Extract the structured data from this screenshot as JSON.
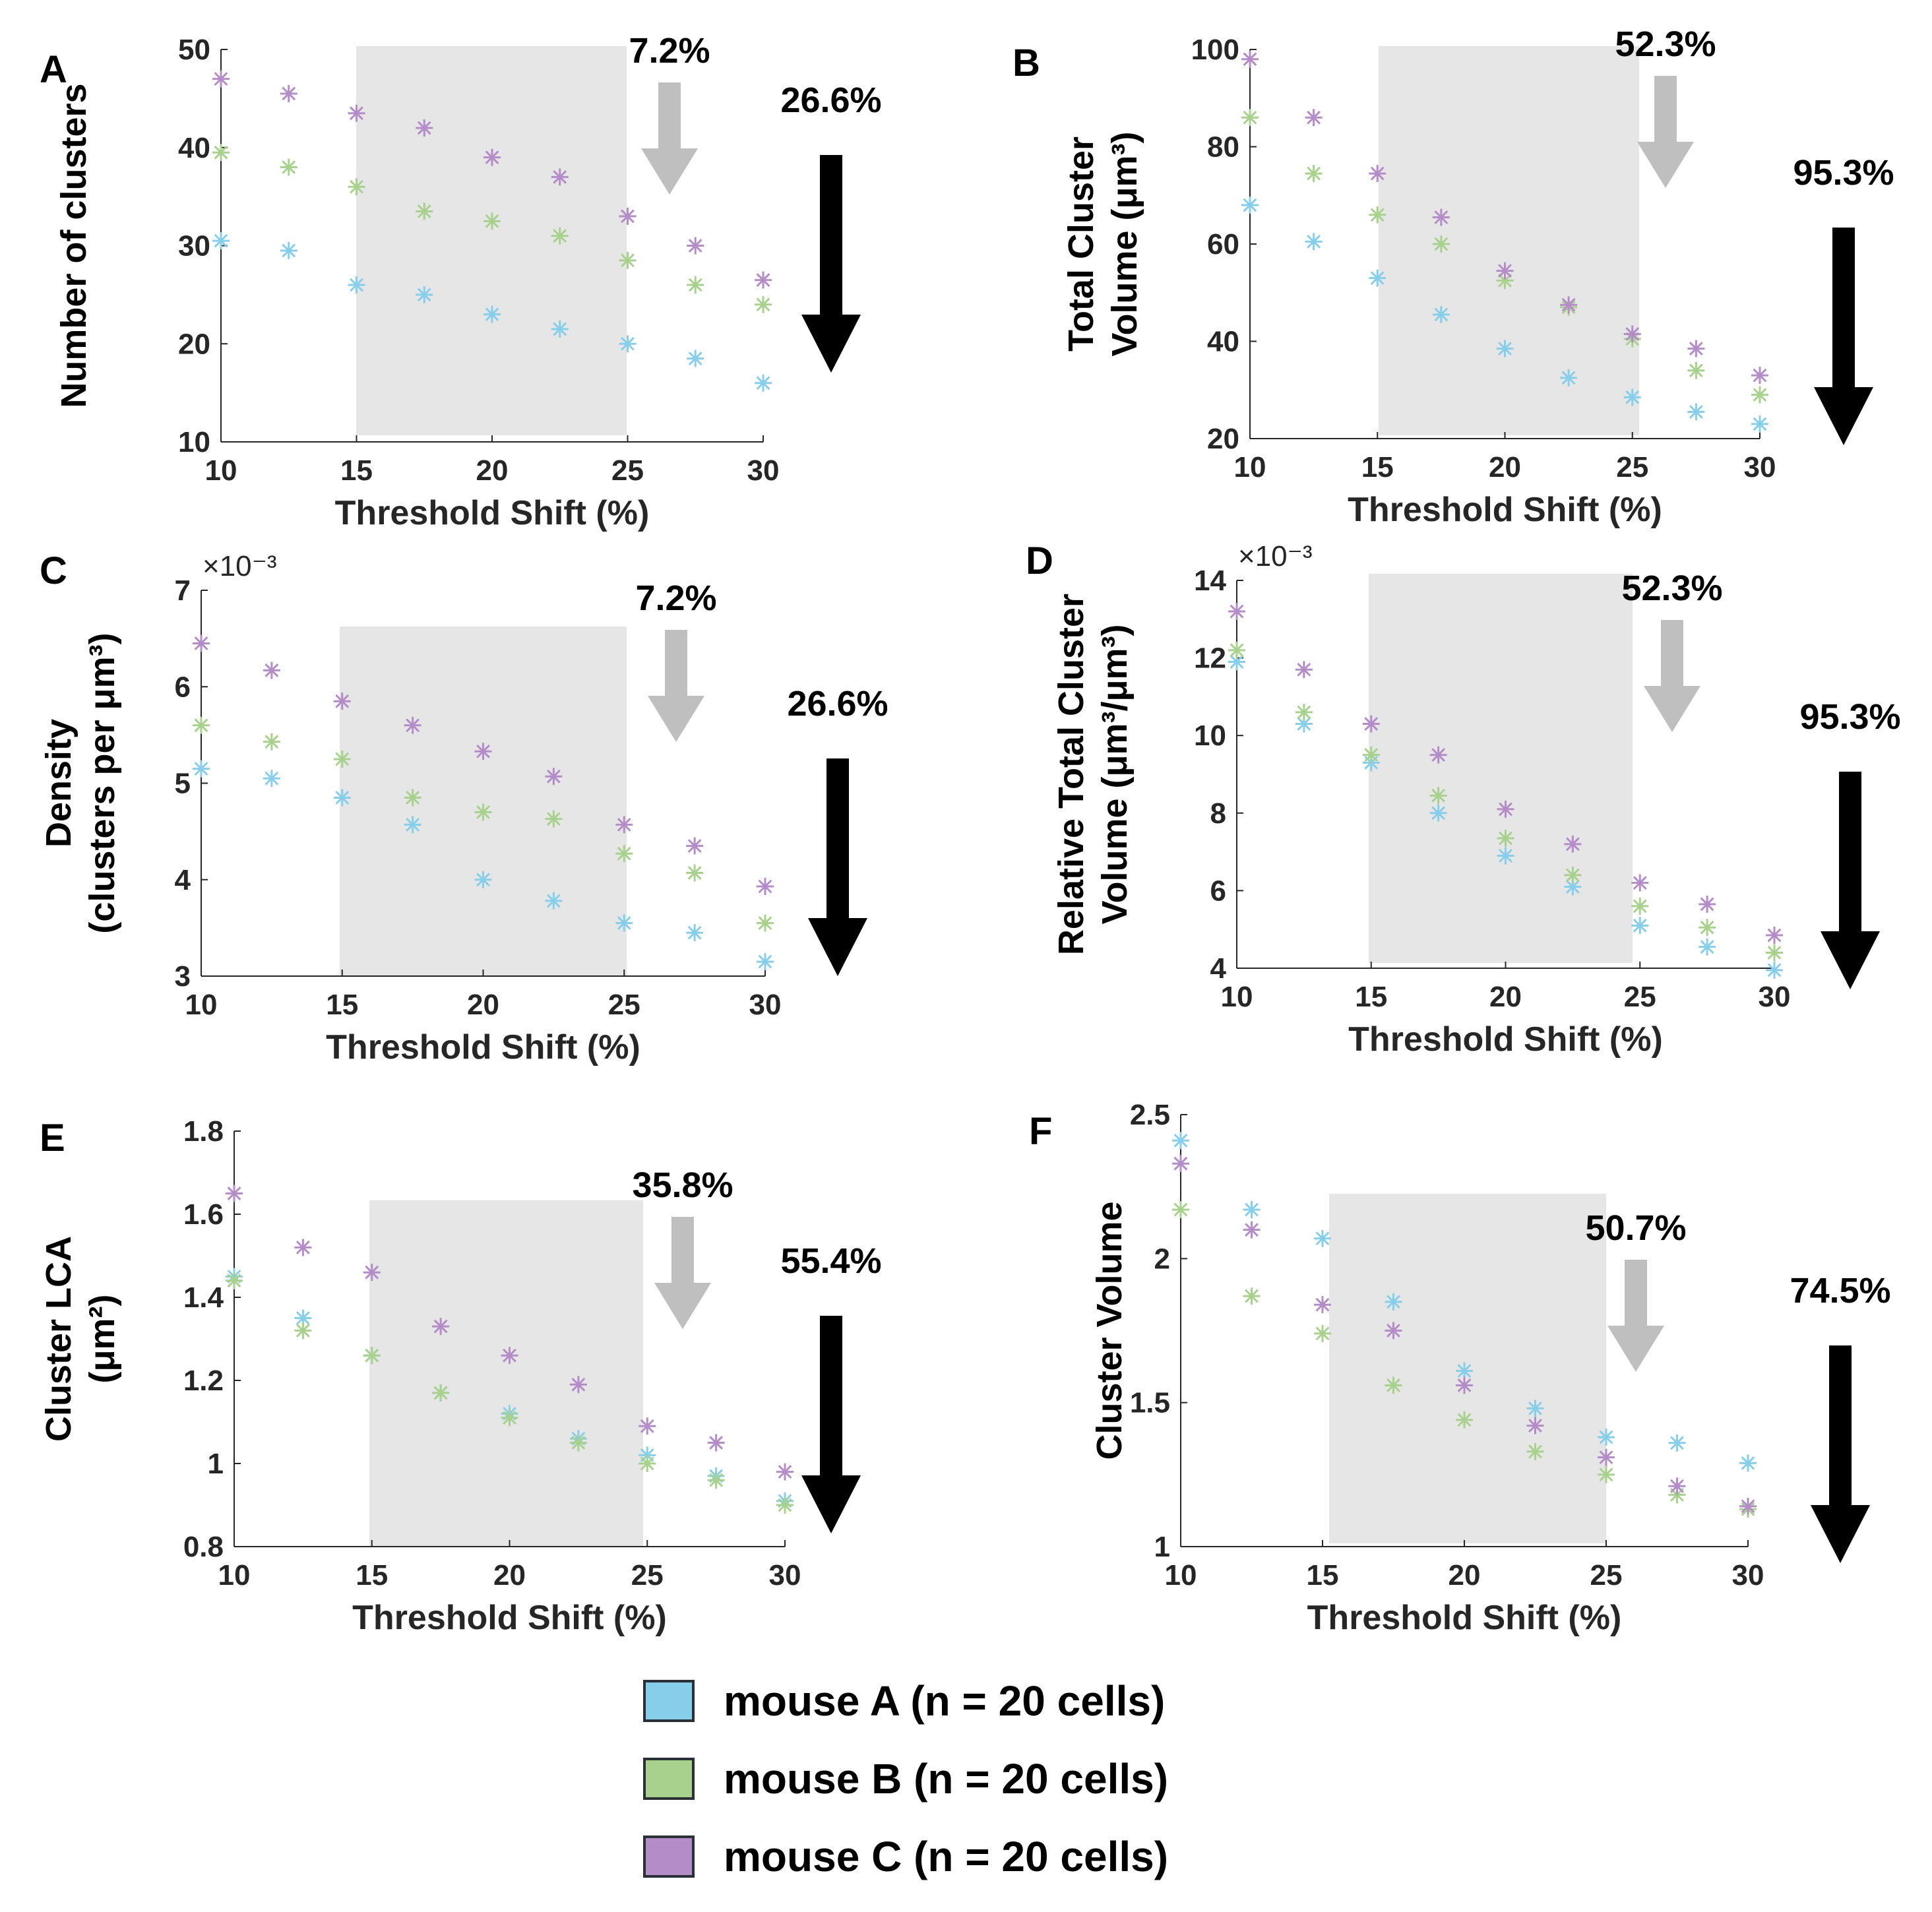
{
  "series": [
    {
      "name": "mouse A",
      "label": "mouse A (n = 20 cells)",
      "color": "#87ceeb"
    },
    {
      "name": "mouse B",
      "label": "mouse B (n = 20 cells)",
      "color": "#a9d18e"
    },
    {
      "name": "mouse C",
      "label": "mouse C (n = 20 cells)",
      "color": "#b48cc8"
    }
  ],
  "chart_data": [
    {
      "panel": "A",
      "type": "scatter",
      "xlabel": "Threshold Shift (%)",
      "ylabel": [
        "Number of clusters"
      ],
      "xlim": [
        10,
        30
      ],
      "ylim": [
        10,
        50
      ],
      "xticks": [
        "10",
        "15",
        "20",
        "25",
        "30"
      ],
      "yticks": [
        "10",
        "20",
        "30",
        "40",
        "50"
      ],
      "multiplier": "",
      "shaded_x": [
        15,
        25
      ],
      "annotations": {
        "gray": "7.2%",
        "black": "26.6%"
      },
      "x": [
        10,
        12.5,
        15,
        17.5,
        20,
        22.5,
        25,
        27.5,
        30
      ],
      "series": [
        {
          "name": "mouse A",
          "values": [
            30.5,
            29.5,
            26,
            25,
            23,
            21.5,
            20,
            18.5,
            16
          ]
        },
        {
          "name": "mouse B",
          "values": [
            39.5,
            38,
            36,
            33.5,
            32.5,
            31,
            28.5,
            26,
            24
          ]
        },
        {
          "name": "mouse C",
          "values": [
            47,
            45.5,
            43.5,
            42,
            39,
            37,
            33,
            30,
            26.5
          ]
        }
      ]
    },
    {
      "panel": "B",
      "type": "scatter",
      "xlabel": "Threshold Shift (%)",
      "ylabel": [
        "Total Cluster",
        "Volume (μm³)"
      ],
      "xlim": [
        10,
        30
      ],
      "ylim": [
        20,
        100
      ],
      "xticks": [
        "10",
        "15",
        "20",
        "25",
        "30"
      ],
      "yticks": [
        "20",
        "40",
        "60",
        "80",
        "100"
      ],
      "multiplier": "",
      "shaded_x": [
        15,
        25
      ],
      "annotations": {
        "gray": "52.3%",
        "black": "95.3%"
      },
      "x": [
        10,
        12.5,
        15,
        17.5,
        20,
        22.5,
        25,
        27.5,
        30
      ],
      "series": [
        {
          "name": "mouse A",
          "values": [
            68,
            60.5,
            53,
            45.5,
            38.5,
            32.5,
            28.5,
            25.5,
            23
          ]
        },
        {
          "name": "mouse B",
          "values": [
            86,
            74.5,
            66,
            60,
            52.5,
            47,
            40.5,
            34,
            29
          ]
        },
        {
          "name": "mouse C",
          "values": [
            98,
            86,
            74.5,
            65.5,
            54.5,
            47.5,
            41.5,
            38.5,
            33
          ]
        }
      ]
    },
    {
      "panel": "C",
      "type": "scatter",
      "xlabel": "Threshold Shift (%)",
      "ylabel": [
        "Density",
        "(clusters per μm³)"
      ],
      "xlim": [
        10,
        30
      ],
      "ylim": [
        3,
        7
      ],
      "xticks": [
        "10",
        "15",
        "20",
        "25",
        "30"
      ],
      "yticks": [
        "3",
        "4",
        "5",
        "6",
        "7"
      ],
      "multiplier": "×10⁻³",
      "shaded_x": [
        15,
        25
      ],
      "annotations": {
        "gray": "7.2%",
        "black": "26.6%"
      },
      "x": [
        10,
        12.5,
        15,
        17.5,
        20,
        22.5,
        25,
        27.5,
        30
      ],
      "series": [
        {
          "name": "mouse A",
          "values": [
            5.15,
            5.05,
            4.85,
            4.57,
            4.0,
            3.78,
            3.55,
            3.45,
            3.15
          ]
        },
        {
          "name": "mouse B",
          "values": [
            5.6,
            5.43,
            5.25,
            4.85,
            4.7,
            4.63,
            4.27,
            4.07,
            3.55
          ]
        },
        {
          "name": "mouse C",
          "values": [
            6.45,
            6.17,
            5.85,
            5.6,
            5.33,
            5.07,
            4.57,
            4.35,
            3.93
          ]
        }
      ]
    },
    {
      "panel": "D",
      "type": "scatter",
      "xlabel": "Threshold Shift (%)",
      "ylabel": [
        "Relative Total Cluster",
        "Volume (μm³/μm³)"
      ],
      "xlim": [
        10,
        30
      ],
      "ylim": [
        4,
        14
      ],
      "xticks": [
        "10",
        "15",
        "20",
        "25",
        "30"
      ],
      "yticks": [
        "4",
        "6",
        "8",
        "10",
        "12",
        "14"
      ],
      "multiplier": "×10⁻³",
      "shaded_x": [
        15,
        25
      ],
      "annotations": {
        "gray": "52.3%",
        "black": "95.3%"
      },
      "x": [
        10,
        12.5,
        15,
        17.5,
        20,
        22.5,
        25,
        27.5,
        30
      ],
      "series": [
        {
          "name": "mouse A",
          "values": [
            11.9,
            10.3,
            9.3,
            8.0,
            6.9,
            6.1,
            5.1,
            4.55,
            3.95
          ]
        },
        {
          "name": "mouse B",
          "values": [
            12.2,
            10.6,
            9.5,
            8.45,
            7.35,
            6.4,
            5.6,
            5.05,
            4.4
          ]
        },
        {
          "name": "mouse C",
          "values": [
            13.2,
            11.7,
            10.3,
            9.5,
            8.1,
            7.2,
            6.2,
            5.65,
            4.85
          ]
        }
      ]
    },
    {
      "panel": "E",
      "type": "scatter",
      "xlabel": "Threshold Shift (%)",
      "ylabel": [
        "Cluster LCA",
        "(μm²)"
      ],
      "xlim": [
        10,
        30
      ],
      "ylim": [
        0.8,
        1.8
      ],
      "xticks": [
        "10",
        "15",
        "20",
        "25",
        "30"
      ],
      "yticks": [
        "0.8",
        "1",
        "1.2",
        "1.4",
        "1.6",
        "1.8"
      ],
      "multiplier": "",
      "shaded_x": [
        15,
        25
      ],
      "annotations": {
        "gray": "35.8%",
        "black": "55.4%"
      },
      "x": [
        10,
        12.5,
        15,
        17.5,
        20,
        22.5,
        25,
        27.5,
        30
      ],
      "series": [
        {
          "name": "mouse A",
          "values": [
            1.45,
            1.35,
            1.26,
            1.17,
            1.12,
            1.06,
            1.02,
            0.97,
            0.91
          ]
        },
        {
          "name": "mouse B",
          "values": [
            1.44,
            1.32,
            1.26,
            1.17,
            1.11,
            1.05,
            1.0,
            0.96,
            0.9
          ]
        },
        {
          "name": "mouse C",
          "values": [
            1.65,
            1.52,
            1.46,
            1.33,
            1.26,
            1.19,
            1.09,
            1.05,
            0.98
          ]
        }
      ]
    },
    {
      "panel": "F",
      "type": "scatter",
      "xlabel": "Threshold Shift (%)",
      "ylabel": [
        "Cluster Volume"
      ],
      "xlim": [
        10,
        30
      ],
      "ylim": [
        1,
        2.5
      ],
      "xticks": [
        "10",
        "15",
        "20",
        "25",
        "30"
      ],
      "yticks": [
        "1",
        "1.5",
        "2",
        "2.5"
      ],
      "multiplier": "",
      "shaded_x": [
        15,
        25
      ],
      "annotations": {
        "gray": "50.7%",
        "black": "74.5%"
      },
      "x": [
        10,
        12.5,
        15,
        17.5,
        20,
        22.5,
        25,
        27.5,
        30
      ],
      "series": [
        {
          "name": "mouse A",
          "values": [
            2.41,
            2.17,
            2.07,
            1.85,
            1.61,
            1.48,
            1.38,
            1.36,
            1.29
          ]
        },
        {
          "name": "mouse B",
          "values": [
            2.17,
            1.87,
            1.74,
            1.56,
            1.44,
            1.33,
            1.25,
            1.18,
            1.13
          ]
        },
        {
          "name": "mouse C",
          "values": [
            2.33,
            2.1,
            1.84,
            1.75,
            1.56,
            1.42,
            1.31,
            1.21,
            1.14
          ]
        }
      ]
    }
  ]
}
